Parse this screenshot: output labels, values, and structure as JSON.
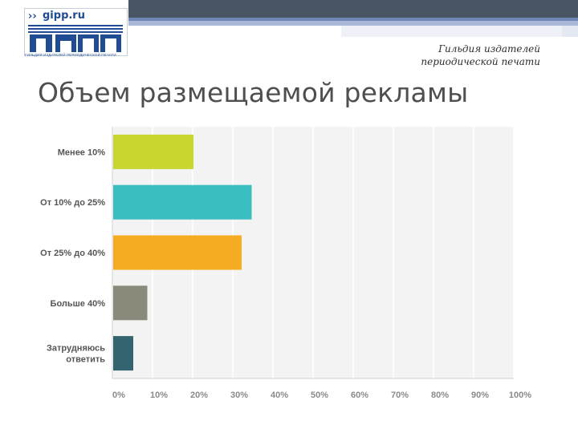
{
  "header": {
    "logo_site": "gipp.ru",
    "logo_caption": "ГИЛЬДИЯ ИЗДАТЕЛЕЙ ПЕРИОДИЧЕСКОЙ ПЕЧАТИ",
    "org_line1": "Гильдия издателей",
    "org_line2": "периодической печати"
  },
  "title": "Объем размещаемой рекламы",
  "colors": {
    "top_band": "#4a5563",
    "accent_blue": "#6f86b6"
  },
  "chart_data": {
    "type": "bar",
    "orientation": "horizontal",
    "title": "",
    "xlabel": "",
    "ylabel": "",
    "categories": [
      [
        "Менее 10%"
      ],
      [
        "От 10% до 25%"
      ],
      [
        "От 25% до 40%"
      ],
      [
        "Больше 40%"
      ],
      [
        "Затрудняюсь",
        "ответить"
      ]
    ],
    "values": [
      20,
      34.5,
      32,
      8.5,
      5
    ],
    "colors": [
      "#c8d62f",
      "#3bbec0",
      "#f6ac22",
      "#8a8a7b",
      "#346470"
    ],
    "xlim": [
      0,
      100
    ],
    "x_ticks": [
      "0%",
      "10%",
      "20%",
      "30%",
      "40%",
      "50%",
      "60%",
      "70%",
      "80%",
      "90%",
      "100%"
    ],
    "grid": true
  }
}
